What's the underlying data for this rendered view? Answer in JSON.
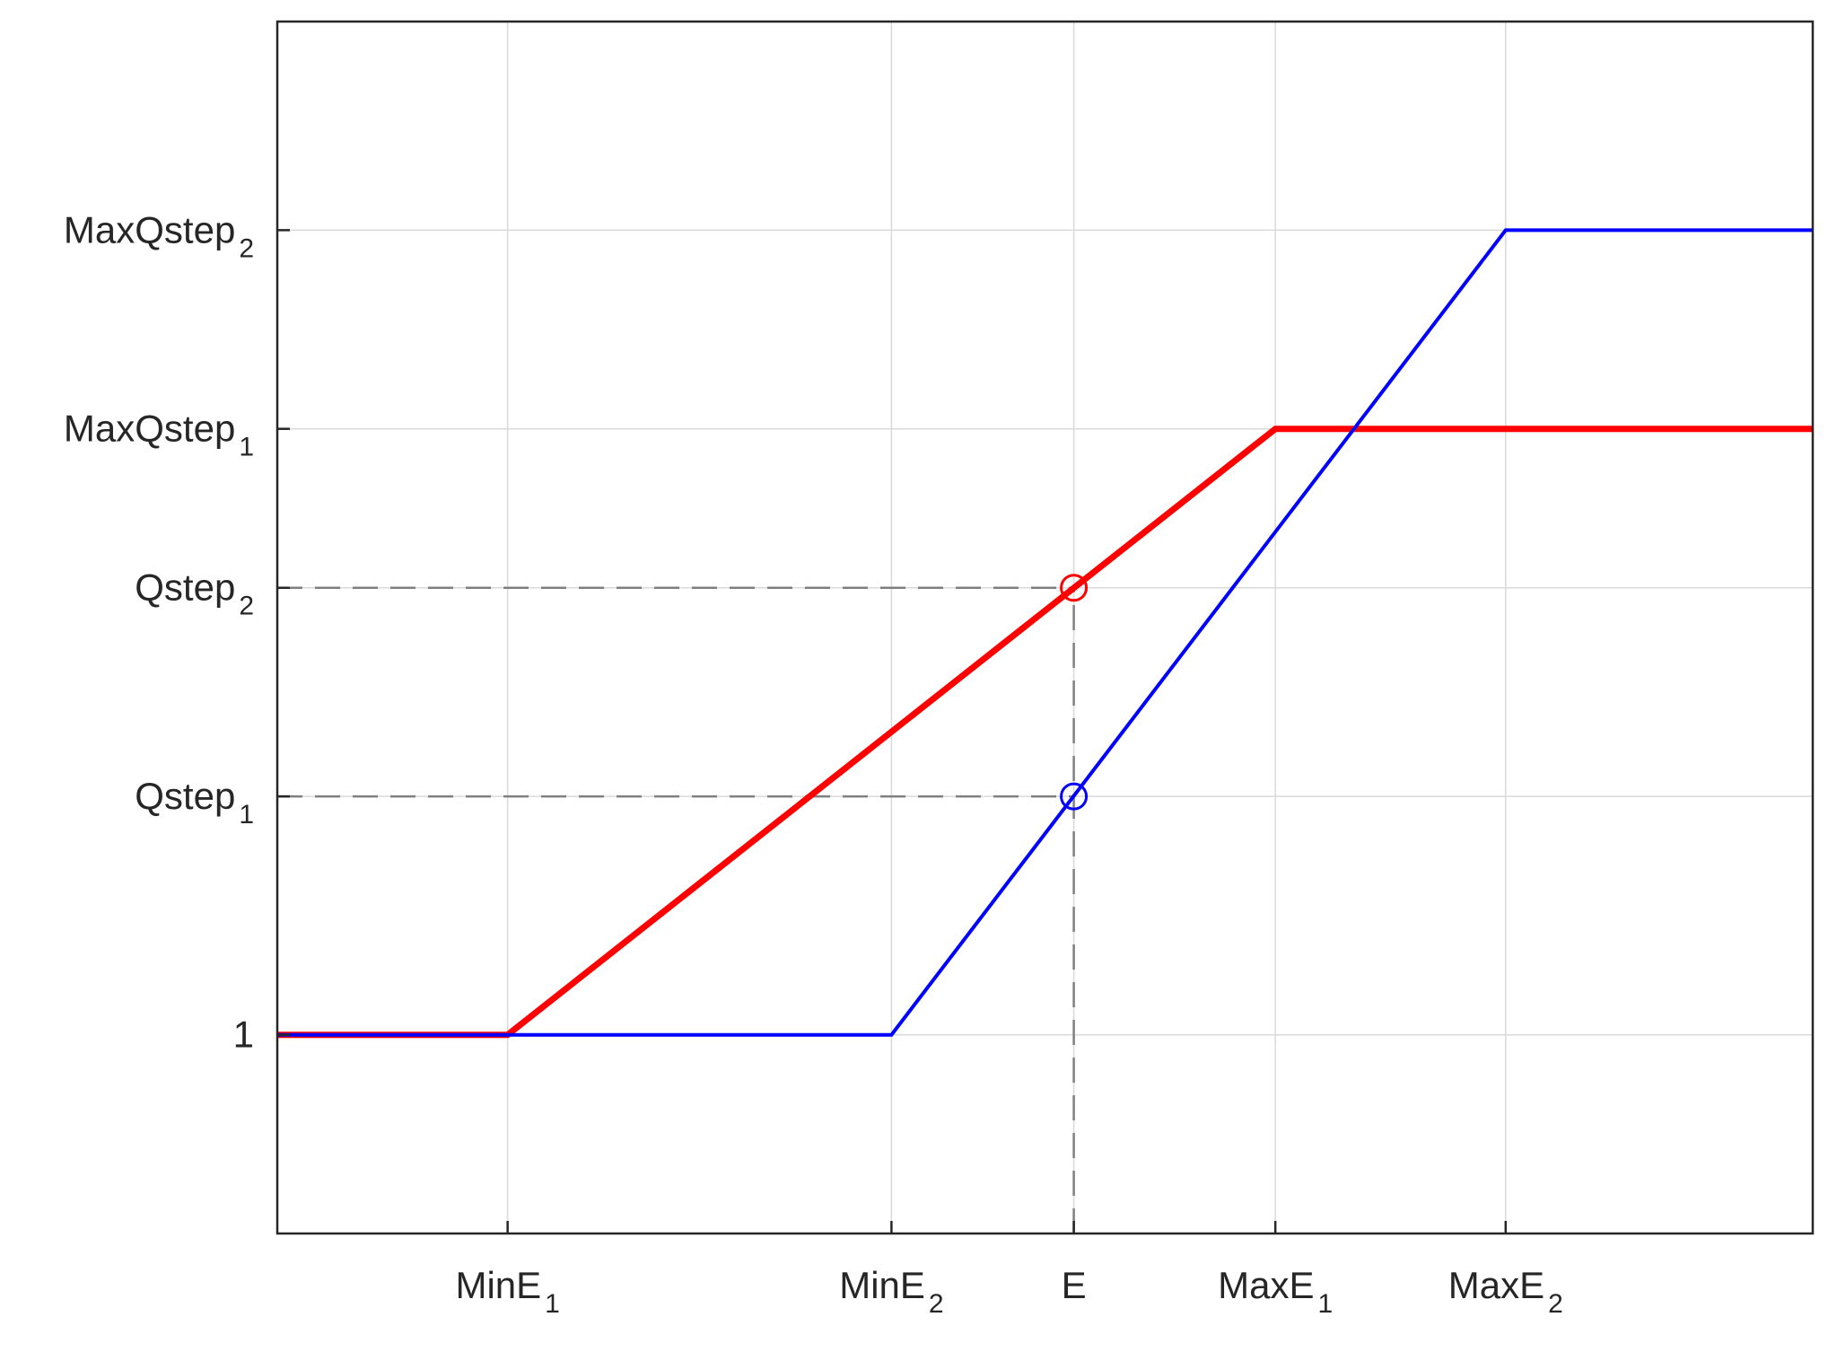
{
  "chart_data": {
    "type": "line",
    "title": "",
    "xlabel": "",
    "ylabel": "",
    "xlim": [
      0,
      8
    ],
    "ylim": [
      0,
      6.1
    ],
    "grid": true,
    "legend": "none",
    "x_ticks": [
      {
        "value": 1.2,
        "base": "MinE",
        "sub": "1"
      },
      {
        "value": 3.2,
        "base": "MinE",
        "sub": "2"
      },
      {
        "value": 4.15,
        "base": "E",
        "sub": ""
      },
      {
        "value": 5.2,
        "base": "MaxE",
        "sub": "1"
      },
      {
        "value": 6.4,
        "base": "MaxE",
        "sub": "2"
      }
    ],
    "y_ticks": [
      {
        "value": 1,
        "base": "1",
        "sub": ""
      },
      {
        "value": 2.2,
        "base": "Qstep",
        "sub": "1"
      },
      {
        "value": 3.25,
        "base": "Qstep",
        "sub": "2"
      },
      {
        "value": 4.05,
        "base": "MaxQstep",
        "sub": "1"
      },
      {
        "value": 5.05,
        "base": "MaxQstep",
        "sub": "2"
      }
    ],
    "series": [
      {
        "color": "#ff0000",
        "width": 7,
        "x": [
          0,
          1.2,
          5.2,
          8
        ],
        "y": [
          1,
          1,
          4.05,
          4.05
        ]
      },
      {
        "color": "#0000ff",
        "width": 4,
        "x": [
          0,
          3.2,
          6.4,
          8
        ],
        "y": [
          1,
          1,
          5.05,
          5.05
        ]
      }
    ],
    "markers": [
      {
        "x": 4.15,
        "y": 3.25,
        "color": "#ff0000"
      },
      {
        "x": 4.15,
        "y": 2.2,
        "color": "#0000ff"
      }
    ],
    "guides": [
      {
        "from": [
          0,
          3.25
        ],
        "to": [
          4.15,
          3.25
        ]
      },
      {
        "from": [
          0,
          2.2
        ],
        "to": [
          4.15,
          2.2
        ]
      },
      {
        "from": [
          4.15,
          0
        ],
        "to": [
          4.15,
          3.25
        ]
      }
    ]
  }
}
